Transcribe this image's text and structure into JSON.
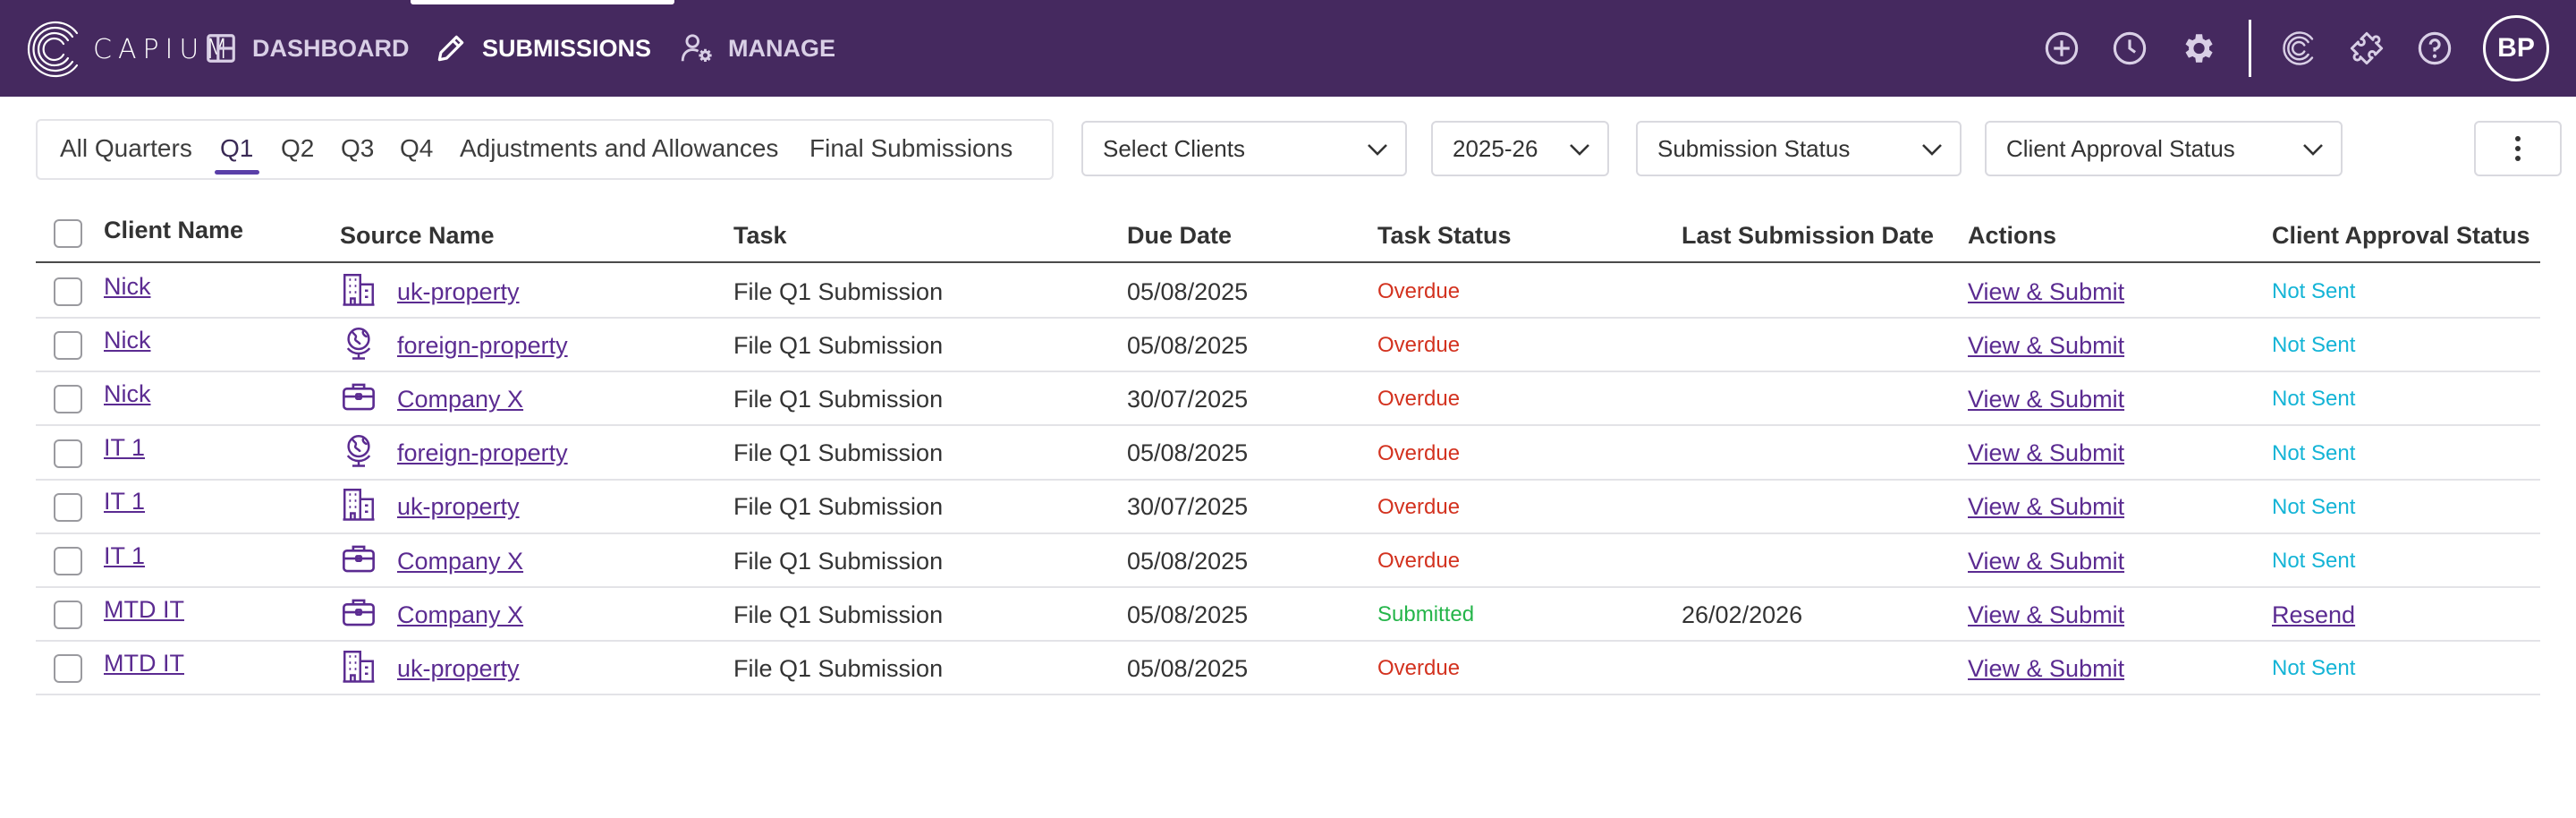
{
  "app": {
    "logo_text": "CAPIUM",
    "nav": [
      {
        "label": "DASHBOARD",
        "icon": "dashboard-icon"
      },
      {
        "label": "SUBMISSIONS",
        "icon": "pencil-icon",
        "active": true
      },
      {
        "label": "MANAGE",
        "icon": "user-settings-icon"
      }
    ],
    "top_icons": [
      "add-circle-icon",
      "clock-icon",
      "gear-icon",
      "capium-c-icon",
      "puzzle-icon",
      "help-icon"
    ],
    "avatar": "BP",
    "colors": {
      "header": "#45295f",
      "link": "#5b2b91",
      "overdue": "#d3321f",
      "submitted": "#25b54a",
      "not_sent": "#14b4d6"
    }
  },
  "filters": {
    "quarter_tabs": [
      "All Quarters",
      "Q1",
      "Q2",
      "Q3",
      "Q4",
      "Adjustments and Allowances",
      "Final Submissions"
    ],
    "active_tab": "Q1",
    "select_clients": "Select Clients",
    "year": "2025-26",
    "submission_status": "Submission Status",
    "client_approval_status": "Client Approval Status"
  },
  "table": {
    "columns": [
      "Client Name",
      "Source Name",
      "Task",
      "Due Date",
      "Task Status",
      "Last Submission Date",
      "Actions",
      "Client Approval Status"
    ],
    "rows": [
      {
        "client": "Nick",
        "source_icon": "building-icon",
        "source": "uk-property",
        "task": "File Q1 Submission",
        "due": "05/08/2025",
        "status": "Overdue",
        "status_kind": "overdue",
        "last": "",
        "action": "View & Submit",
        "approval": "Not Sent",
        "approval_kind": "notsent"
      },
      {
        "client": "Nick",
        "source_icon": "globe-icon",
        "source": "foreign-property",
        "task": "File Q1 Submission",
        "due": "05/08/2025",
        "status": "Overdue",
        "status_kind": "overdue",
        "last": "",
        "action": "View & Submit",
        "approval": "Not Sent",
        "approval_kind": "notsent"
      },
      {
        "client": "Nick",
        "source_icon": "briefcase-icon",
        "source": "Company X",
        "task": "File Q1 Submission",
        "due": "30/07/2025",
        "status": "Overdue",
        "status_kind": "overdue",
        "last": "",
        "action": "View & Submit",
        "approval": "Not Sent",
        "approval_kind": "notsent"
      },
      {
        "client": "IT 1",
        "source_icon": "globe-icon",
        "source": "foreign-property",
        "task": "File Q1 Submission",
        "due": "05/08/2025",
        "status": "Overdue",
        "status_kind": "overdue",
        "last": "",
        "action": "View & Submit",
        "approval": "Not Sent",
        "approval_kind": "notsent"
      },
      {
        "client": "IT 1",
        "source_icon": "building-icon",
        "source": "uk-property",
        "task": "File Q1 Submission",
        "due": "30/07/2025",
        "status": "Overdue",
        "status_kind": "overdue",
        "last": "",
        "action": "View & Submit",
        "approval": "Not Sent",
        "approval_kind": "notsent"
      },
      {
        "client": "IT 1",
        "source_icon": "briefcase-icon",
        "source": "Company X",
        "task": "File Q1 Submission",
        "due": "05/08/2025",
        "status": "Overdue",
        "status_kind": "overdue",
        "last": "",
        "action": "View & Submit",
        "approval": "Not Sent",
        "approval_kind": "notsent"
      },
      {
        "client": "MTD IT",
        "source_icon": "briefcase-icon",
        "source": "Company X",
        "task": "File Q1 Submission",
        "due": "05/08/2025",
        "status": "Submitted",
        "status_kind": "submitted",
        "last": "26/02/2026",
        "action": "View & Submit",
        "approval": "Resend",
        "approval_kind": "resend"
      },
      {
        "client": "MTD IT",
        "source_icon": "building-icon",
        "source": "uk-property",
        "task": "File Q1 Submission",
        "due": "05/08/2025",
        "status": "Overdue",
        "status_kind": "overdue",
        "last": "",
        "action": "View & Submit",
        "approval": "Not Sent",
        "approval_kind": "notsent"
      }
    ]
  }
}
